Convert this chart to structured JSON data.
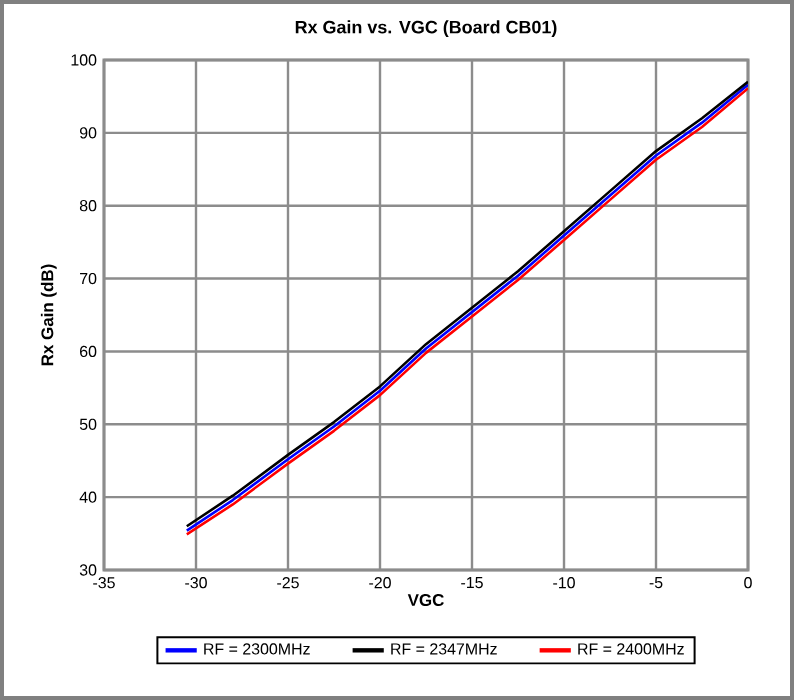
{
  "chart_data": {
    "type": "line",
    "title": "Rx Gain vs. VGC (Board CB01)",
    "xlabel": "VGC",
    "ylabel": "Rx Gain (dB)",
    "xlim": [
      -35,
      0
    ],
    "ylim": [
      30,
      100
    ],
    "xticks": [
      -35,
      -30,
      -25,
      -20,
      -15,
      -10,
      -5,
      0
    ],
    "yticks": [
      30,
      40,
      50,
      60,
      70,
      80,
      90,
      100
    ],
    "grid": true,
    "legend": "bottom",
    "line_style": "solid",
    "marker": "none",
    "series": [
      {
        "name": "RF = 2300MHz",
        "color": "#0000ff",
        "x": [
          -30.5,
          -28,
          -25,
          -22.5,
          -20,
          -17.5,
          -15,
          -12.5,
          -10,
          -7.5,
          -5,
          -2.5,
          0
        ],
        "values": [
          35.4,
          39.6,
          45.2,
          49.7,
          54.6,
          60.4,
          65.4,
          70.4,
          75.9,
          81.4,
          86.9,
          91.4,
          96.6
        ]
      },
      {
        "name": "RF = 2347MHz",
        "color": "#000000",
        "x": [
          -30.5,
          -28,
          -25,
          -22.5,
          -20,
          -17.5,
          -15,
          -12.5,
          -10,
          -7.5,
          -5,
          -2.5,
          0
        ],
        "values": [
          36,
          40.2,
          45.8,
          50.3,
          55.2,
          61,
          66,
          71,
          76.5,
          82,
          87.5,
          92,
          97
        ]
      },
      {
        "name": "RF = 2400MHz",
        "color": "#ff0000",
        "x": [
          -30.5,
          -28,
          -25,
          -22.5,
          -20,
          -17.5,
          -15,
          -12.5,
          -10,
          -7.5,
          -5,
          -2.5,
          0
        ],
        "values": [
          34.9,
          39,
          44.6,
          49.1,
          54,
          59.8,
          64.8,
          69.8,
          75.3,
          80.8,
          86.3,
          90.8,
          96.1
        ]
      }
    ]
  }
}
